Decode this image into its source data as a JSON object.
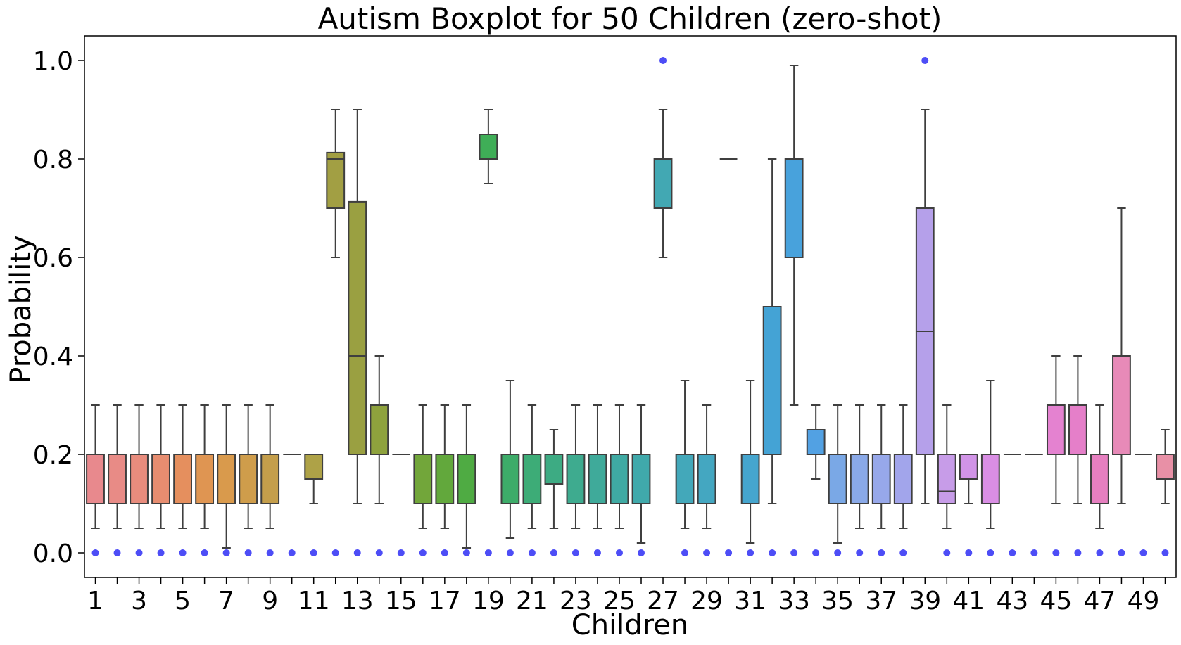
{
  "chart_data": {
    "type": "boxplot",
    "title": "Autism Boxplot for 50 Children (zero-shot)",
    "xlabel": "Children",
    "ylabel": "Probability",
    "ylim": [
      -0.05,
      1.05
    ],
    "yticks": [
      "0.0",
      "0.2",
      "0.4",
      "0.6",
      "0.8",
      "1.0"
    ],
    "ytick_values": [
      0.0,
      0.2,
      0.4,
      0.6,
      0.8,
      1.0
    ],
    "xticks": [
      "1",
      "3",
      "5",
      "7",
      "9",
      "11",
      "13",
      "15",
      "17",
      "19",
      "21",
      "23",
      "25",
      "27",
      "29",
      "31",
      "33",
      "35",
      "37",
      "39",
      "41",
      "43",
      "45",
      "47",
      "49"
    ],
    "grid": false,
    "point_color": "#3a3af5",
    "box_edge_color": "#3f3f3f",
    "children": [
      {
        "id": 1,
        "whislo": 0.05,
        "q1": 0.1,
        "med": 0.2,
        "q3": 0.2,
        "whishi": 0.3,
        "fliers": [
          0.0
        ],
        "color": "#e8898d"
      },
      {
        "id": 2,
        "whislo": 0.05,
        "q1": 0.1,
        "med": 0.2,
        "q3": 0.2,
        "whishi": 0.3,
        "fliers": [
          0.0
        ],
        "color": "#e88b86"
      },
      {
        "id": 3,
        "whislo": 0.05,
        "q1": 0.1,
        "med": 0.2,
        "q3": 0.2,
        "whishi": 0.3,
        "fliers": [
          0.0
        ],
        "color": "#e88c7d"
      },
      {
        "id": 4,
        "whislo": 0.05,
        "q1": 0.1,
        "med": 0.2,
        "q3": 0.2,
        "whishi": 0.3,
        "fliers": [
          0.0
        ],
        "color": "#e78d70"
      },
      {
        "id": 5,
        "whislo": 0.05,
        "q1": 0.1,
        "med": 0.2,
        "q3": 0.2,
        "whishi": 0.3,
        "fliers": [
          0.0
        ],
        "color": "#e58f5e"
      },
      {
        "id": 6,
        "whislo": 0.05,
        "q1": 0.1,
        "med": 0.2,
        "q3": 0.2,
        "whishi": 0.3,
        "fliers": [
          0.0
        ],
        "color": "#df9552"
      },
      {
        "id": 7,
        "whislo": 0.01,
        "q1": 0.1,
        "med": 0.2,
        "q3": 0.2,
        "whishi": 0.3,
        "fliers": [
          0.0
        ],
        "color": "#d99a4c"
      },
      {
        "id": 8,
        "whislo": 0.05,
        "q1": 0.1,
        "med": 0.2,
        "q3": 0.2,
        "whishi": 0.3,
        "fliers": [
          0.0
        ],
        "color": "#cf9d4b"
      },
      {
        "id": 9,
        "whislo": 0.05,
        "q1": 0.1,
        "med": 0.2,
        "q3": 0.2,
        "whishi": 0.3,
        "fliers": [
          0.0
        ],
        "color": "#c49e4b"
      },
      {
        "id": 10,
        "whislo": 0.2,
        "q1": 0.2,
        "med": 0.2,
        "q3": 0.2,
        "whishi": 0.2,
        "fliers": [
          0.0
        ],
        "color": "#b9a04a"
      },
      {
        "id": 11,
        "whislo": 0.1,
        "q1": 0.15,
        "med": 0.2,
        "q3": 0.2,
        "whishi": 0.2,
        "fliers": [
          0.0
        ],
        "color": "#aea247"
      },
      {
        "id": 12,
        "whislo": 0.6,
        "q1": 0.7,
        "med": 0.8,
        "q3": 0.813,
        "whishi": 0.9,
        "fliers": [
          0.0
        ],
        "color": "#a29f43"
      },
      {
        "id": 13,
        "whislo": 0.1,
        "q1": 0.2,
        "med": 0.4,
        "q3": 0.713,
        "whishi": 0.9,
        "fliers": [
          0.0
        ],
        "color": "#9aa041"
      },
      {
        "id": 14,
        "whislo": 0.1,
        "q1": 0.2,
        "med": 0.2,
        "q3": 0.3,
        "whishi": 0.4,
        "fliers": [
          0.0
        ],
        "color": "#8ea23d"
      },
      {
        "id": 15,
        "whislo": 0.2,
        "q1": 0.2,
        "med": 0.2,
        "q3": 0.2,
        "whishi": 0.2,
        "fliers": [
          0.0
        ],
        "color": "#80a43b"
      },
      {
        "id": 16,
        "whislo": 0.05,
        "q1": 0.1,
        "med": 0.2,
        "q3": 0.2,
        "whishi": 0.3,
        "fliers": [
          0.0
        ],
        "color": "#72a63a"
      },
      {
        "id": 17,
        "whislo": 0.05,
        "q1": 0.1,
        "med": 0.2,
        "q3": 0.2,
        "whishi": 0.3,
        "fliers": [
          0.0
        ],
        "color": "#62a83c"
      },
      {
        "id": 18,
        "whislo": 0.01,
        "q1": 0.1,
        "med": 0.2,
        "q3": 0.2,
        "whishi": 0.3,
        "fliers": [
          0.0
        ],
        "color": "#4fab43"
      },
      {
        "id": 19,
        "whislo": 0.75,
        "q1": 0.8,
        "med": 0.8,
        "q3": 0.85,
        "whishi": 0.9,
        "fliers": [
          0.0
        ],
        "color": "#3fae57"
      },
      {
        "id": 20,
        "whislo": 0.03,
        "q1": 0.1,
        "med": 0.2,
        "q3": 0.2,
        "whishi": 0.35,
        "fliers": [
          0.0
        ],
        "color": "#3dac69"
      },
      {
        "id": 21,
        "whislo": 0.05,
        "q1": 0.1,
        "med": 0.2,
        "q3": 0.2,
        "whishi": 0.3,
        "fliers": [
          0.0
        ],
        "color": "#3dac77"
      },
      {
        "id": 22,
        "whislo": 0.05,
        "q1": 0.14,
        "med": 0.2,
        "q3": 0.2,
        "whishi": 0.25,
        "fliers": [
          0.0
        ],
        "color": "#3dab83"
      },
      {
        "id": 23,
        "whislo": 0.05,
        "q1": 0.1,
        "med": 0.2,
        "q3": 0.2,
        "whishi": 0.3,
        "fliers": [
          0.0
        ],
        "color": "#3eab8f"
      },
      {
        "id": 24,
        "whislo": 0.05,
        "q1": 0.1,
        "med": 0.2,
        "q3": 0.2,
        "whishi": 0.3,
        "fliers": [
          0.0
        ],
        "color": "#3faa9a"
      },
      {
        "id": 25,
        "whislo": 0.05,
        "q1": 0.1,
        "med": 0.2,
        "q3": 0.2,
        "whishi": 0.3,
        "fliers": [
          0.0
        ],
        "color": "#3faaa3"
      },
      {
        "id": 26,
        "whislo": 0.02,
        "q1": 0.1,
        "med": 0.2,
        "q3": 0.2,
        "whishi": 0.3,
        "fliers": [
          0.0
        ],
        "color": "#40a9ab"
      },
      {
        "id": 27,
        "whislo": 0.6,
        "q1": 0.7,
        "med": 0.8,
        "q3": 0.8,
        "whishi": 0.9,
        "fliers": [
          1.0
        ],
        "color": "#42a8b3"
      },
      {
        "id": 28,
        "whislo": 0.05,
        "q1": 0.1,
        "med": 0.2,
        "q3": 0.2,
        "whishi": 0.35,
        "fliers": [
          0.0
        ],
        "color": "#43a8ba"
      },
      {
        "id": 29,
        "whislo": 0.05,
        "q1": 0.1,
        "med": 0.2,
        "q3": 0.2,
        "whishi": 0.3,
        "fliers": [
          0.0
        ],
        "color": "#44a7c1"
      },
      {
        "id": 30,
        "whislo": 0.8,
        "q1": 0.8,
        "med": 0.8,
        "q3": 0.8,
        "whishi": 0.8,
        "fliers": [
          0.0
        ],
        "color": "#45a6c8"
      },
      {
        "id": 31,
        "whislo": 0.02,
        "q1": 0.1,
        "med": 0.2,
        "q3": 0.2,
        "whishi": 0.35,
        "fliers": [
          0.0
        ],
        "color": "#45a5ce"
      },
      {
        "id": 32,
        "whislo": 0.1,
        "q1": 0.2,
        "med": 0.5,
        "q3": 0.5,
        "whishi": 0.8,
        "fliers": [
          0.0
        ],
        "color": "#44a3d5"
      },
      {
        "id": 33,
        "whislo": 0.3,
        "q1": 0.6,
        "med": 0.8,
        "q3": 0.8,
        "whishi": 0.99,
        "fliers": [
          0.0
        ],
        "color": "#48a2dc"
      },
      {
        "id": 34,
        "whislo": 0.15,
        "q1": 0.2,
        "med": 0.25,
        "q3": 0.25,
        "whishi": 0.3,
        "fliers": [
          0.0
        ],
        "color": "#52a1e3"
      },
      {
        "id": 35,
        "whislo": 0.02,
        "q1": 0.1,
        "med": 0.2,
        "q3": 0.2,
        "whishi": 0.3,
        "fliers": [
          0.0
        ],
        "color": "#7aa8e6"
      },
      {
        "id": 36,
        "whislo": 0.05,
        "q1": 0.1,
        "med": 0.2,
        "q3": 0.2,
        "whishi": 0.3,
        "fliers": [
          0.0
        ],
        "color": "#8aa9e8"
      },
      {
        "id": 37,
        "whislo": 0.05,
        "q1": 0.1,
        "med": 0.2,
        "q3": 0.2,
        "whishi": 0.3,
        "fliers": [
          0.0
        ],
        "color": "#97a8ea"
      },
      {
        "id": 38,
        "whislo": 0.05,
        "q1": 0.1,
        "med": 0.2,
        "q3": 0.2,
        "whishi": 0.3,
        "fliers": [
          0.0
        ],
        "color": "#a2a5eb"
      },
      {
        "id": 39,
        "whislo": 0.1,
        "q1": 0.2,
        "med": 0.45,
        "q3": 0.7,
        "whishi": 0.9,
        "fliers": [
          1.0
        ],
        "color": "#b5a0ea"
      },
      {
        "id": 40,
        "whislo": 0.05,
        "q1": 0.1,
        "med": 0.125,
        "q3": 0.2,
        "whishi": 0.3,
        "fliers": [
          0.0
        ],
        "color": "#c79ce8"
      },
      {
        "id": 41,
        "whislo": 0.1,
        "q1": 0.15,
        "med": 0.2,
        "q3": 0.2,
        "whishi": 0.2,
        "fliers": [
          0.0
        ],
        "color": "#d194e7"
      },
      {
        "id": 42,
        "whislo": 0.05,
        "q1": 0.1,
        "med": 0.2,
        "q3": 0.2,
        "whishi": 0.35,
        "fliers": [
          0.0
        ],
        "color": "#d98ee4"
      },
      {
        "id": 43,
        "whislo": 0.2,
        "q1": 0.2,
        "med": 0.2,
        "q3": 0.2,
        "whishi": 0.2,
        "fliers": [
          0.0
        ],
        "color": "#df8adf"
      },
      {
        "id": 44,
        "whislo": 0.2,
        "q1": 0.2,
        "med": 0.2,
        "q3": 0.2,
        "whishi": 0.2,
        "fliers": [
          0.0
        ],
        "color": "#e286d8"
      },
      {
        "id": 45,
        "whislo": 0.1,
        "q1": 0.2,
        "med": 0.3,
        "q3": 0.3,
        "whishi": 0.4,
        "fliers": [
          0.0
        ],
        "color": "#e482d0"
      },
      {
        "id": 46,
        "whislo": 0.1,
        "q1": 0.2,
        "med": 0.3,
        "q3": 0.3,
        "whishi": 0.4,
        "fliers": [
          0.0
        ],
        "color": "#e57fc9"
      },
      {
        "id": 47,
        "whislo": 0.05,
        "q1": 0.1,
        "med": 0.2,
        "q3": 0.2,
        "whishi": 0.3,
        "fliers": [
          0.0
        ],
        "color": "#e67fc0"
      },
      {
        "id": 48,
        "whislo": 0.1,
        "q1": 0.2,
        "med": 0.4,
        "q3": 0.4,
        "whishi": 0.7,
        "fliers": [
          0.0
        ],
        "color": "#e78ab8"
      },
      {
        "id": 49,
        "whislo": 0.2,
        "q1": 0.2,
        "med": 0.2,
        "q3": 0.2,
        "whishi": 0.2,
        "fliers": [
          0.0
        ],
        "color": "#e78aae"
      },
      {
        "id": 50,
        "whislo": 0.1,
        "q1": 0.15,
        "med": 0.2,
        "q3": 0.2,
        "whishi": 0.25,
        "fliers": [
          0.0
        ],
        "color": "#e890a6"
      }
    ]
  }
}
